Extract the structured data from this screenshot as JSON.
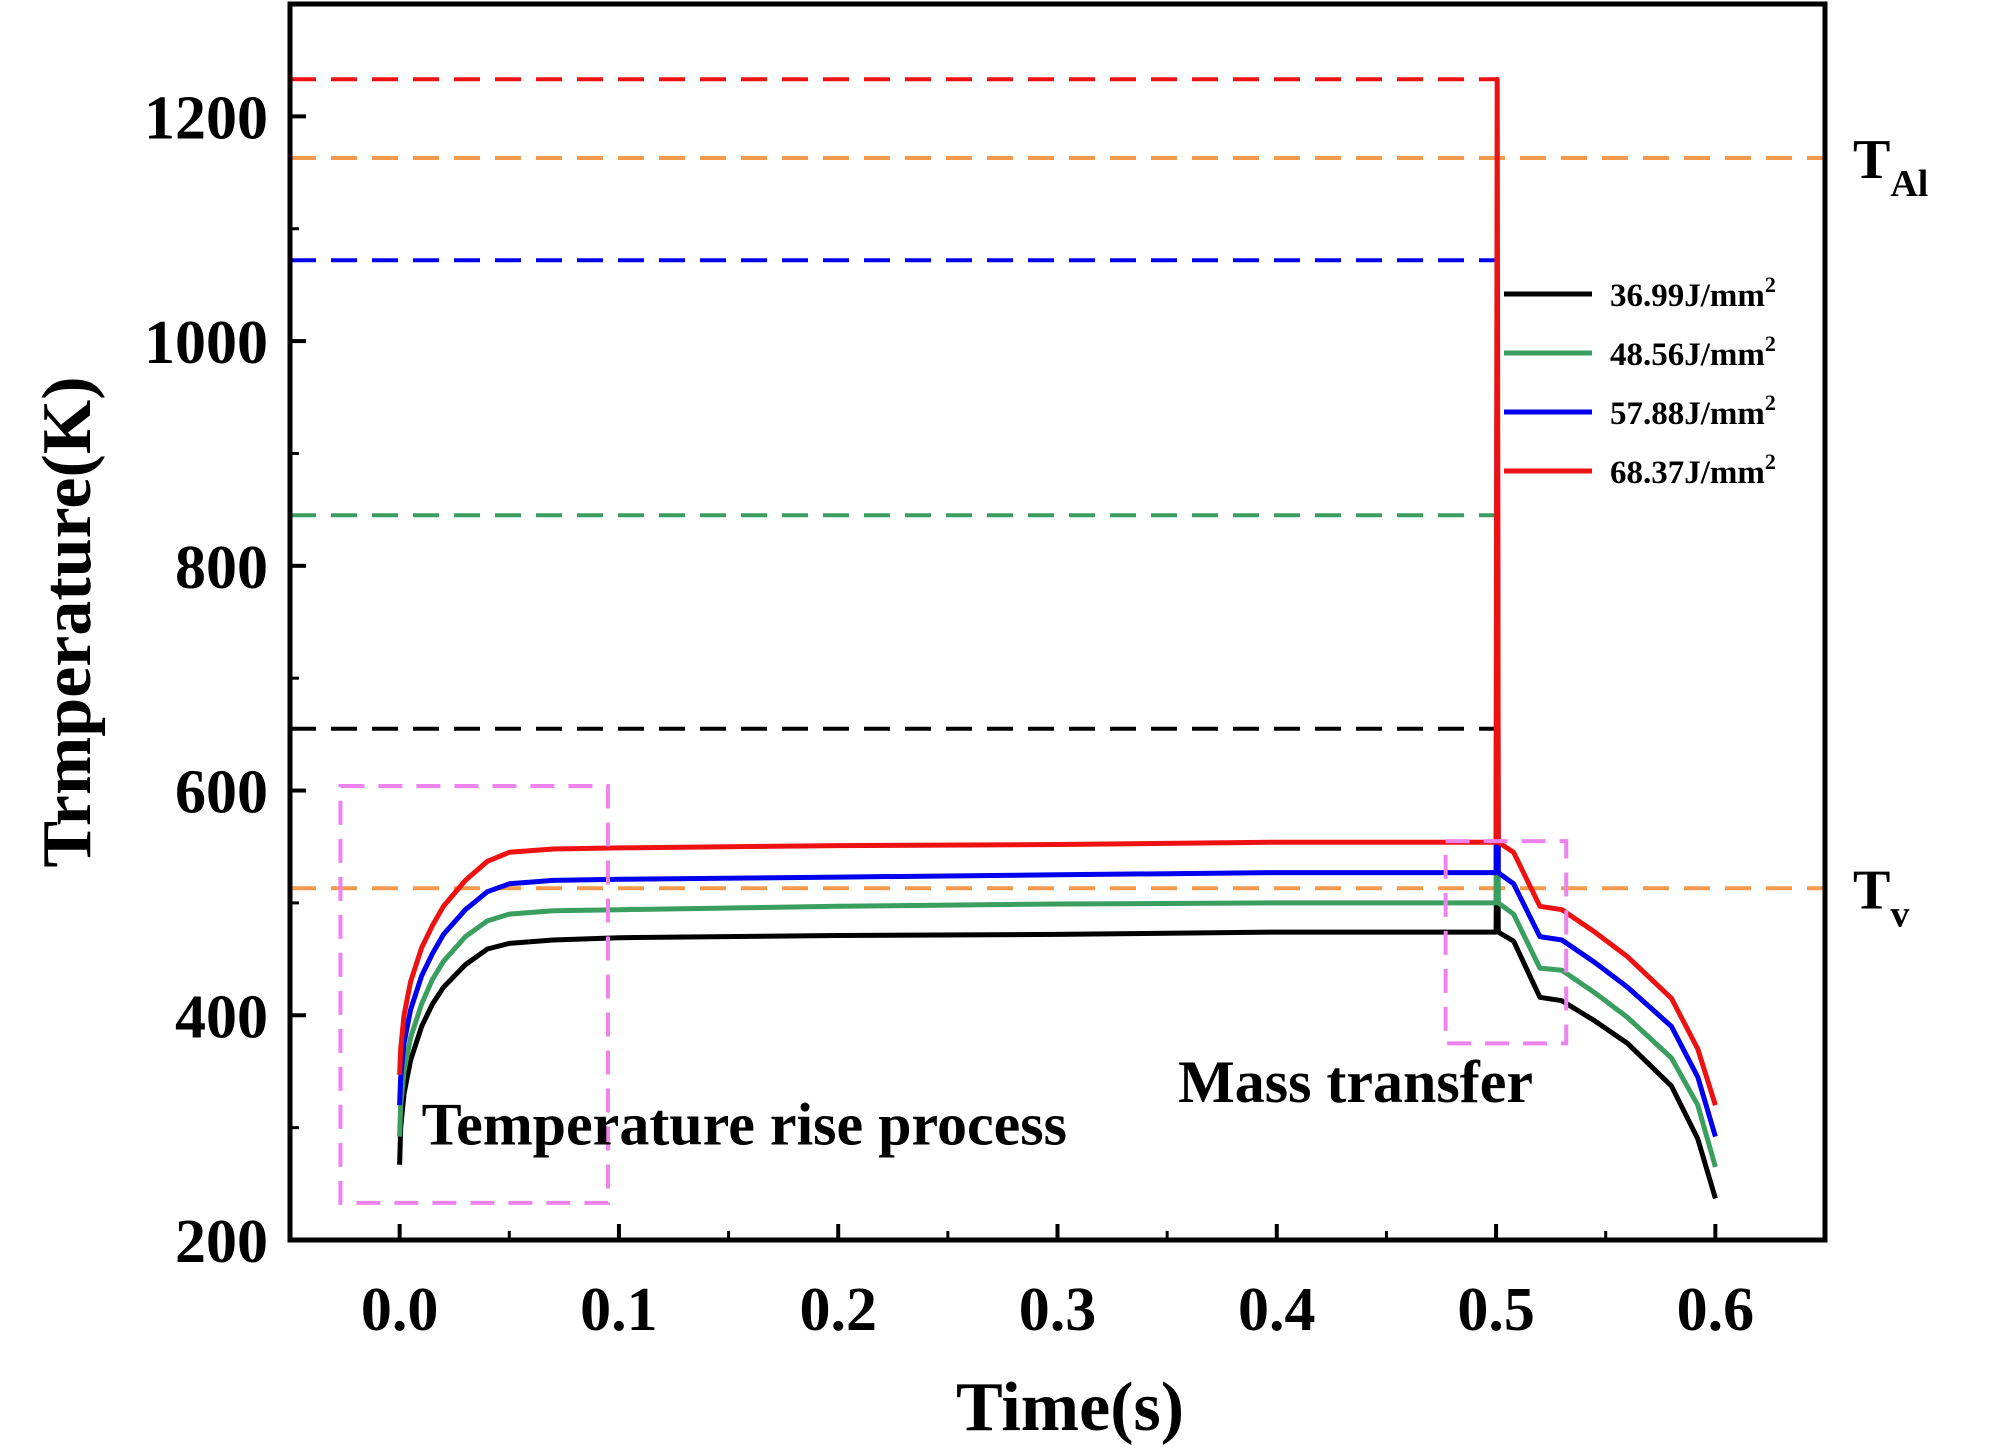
{
  "chart_data": {
    "type": "line",
    "title": "",
    "xlabel": "Time(s)",
    "ylabel": "Trmperature(K)",
    "xlim": [
      -0.05,
      0.65
    ],
    "ylim": [
      200,
      1300
    ],
    "xticks": [
      0.0,
      0.1,
      0.2,
      0.3,
      0.4,
      0.5,
      0.6
    ],
    "xtick_labels": [
      "0.0",
      "0.1",
      "0.2",
      "0.3",
      "0.4",
      "0.5",
      "0.6"
    ],
    "yticks": [
      200,
      400,
      600,
      800,
      1000,
      1200
    ],
    "ytick_labels": [
      "200",
      "400",
      "600",
      "800",
      "1000",
      "1200"
    ],
    "grid": false,
    "legend_position": "right",
    "series": [
      {
        "name": "36.99J/mm",
        "superscript": "2",
        "color": "#000000",
        "peak": 655,
        "points": [
          [
            0.0,
            267
          ],
          [
            0.0005,
            300
          ],
          [
            0.002,
            330
          ],
          [
            0.005,
            360
          ],
          [
            0.01,
            390
          ],
          [
            0.015,
            410
          ],
          [
            0.02,
            425
          ],
          [
            0.03,
            445
          ],
          [
            0.04,
            459
          ],
          [
            0.05,
            464
          ],
          [
            0.07,
            467
          ],
          [
            0.1,
            469
          ],
          [
            0.2,
            471
          ],
          [
            0.3,
            472
          ],
          [
            0.4,
            474
          ],
          [
            0.45,
            474
          ],
          [
            0.499,
            474
          ],
          [
            0.5,
            474
          ],
          [
            0.5005,
            655
          ],
          [
            0.501,
            474
          ],
          [
            0.508,
            466
          ],
          [
            0.52,
            416
          ],
          [
            0.53,
            413
          ],
          [
            0.545,
            395
          ],
          [
            0.56,
            375
          ],
          [
            0.58,
            337
          ],
          [
            0.592,
            290
          ],
          [
            0.6,
            237
          ]
        ]
      },
      {
        "name": "48.56J/mm",
        "superscript": "2",
        "color": "#3a9e5f",
        "peak": 845,
        "points": [
          [
            0.0,
            292
          ],
          [
            0.0005,
            320
          ],
          [
            0.002,
            350
          ],
          [
            0.005,
            380
          ],
          [
            0.01,
            410
          ],
          [
            0.015,
            432
          ],
          [
            0.02,
            448
          ],
          [
            0.03,
            470
          ],
          [
            0.04,
            484
          ],
          [
            0.05,
            490
          ],
          [
            0.07,
            493
          ],
          [
            0.1,
            494
          ],
          [
            0.2,
            497
          ],
          [
            0.3,
            499
          ],
          [
            0.4,
            500
          ],
          [
            0.45,
            500
          ],
          [
            0.499,
            500
          ],
          [
            0.5,
            500
          ],
          [
            0.5005,
            845
          ],
          [
            0.501,
            500
          ],
          [
            0.508,
            490
          ],
          [
            0.52,
            442
          ],
          [
            0.53,
            440
          ],
          [
            0.545,
            420
          ],
          [
            0.56,
            398
          ],
          [
            0.58,
            362
          ],
          [
            0.592,
            320
          ],
          [
            0.6,
            265
          ]
        ]
      },
      {
        "name": "57.88J/mm",
        "superscript": "2",
        "color": "#0000ee",
        "peak": 1072,
        "points": [
          [
            0.0,
            320
          ],
          [
            0.0005,
            345
          ],
          [
            0.002,
            375
          ],
          [
            0.005,
            405
          ],
          [
            0.01,
            435
          ],
          [
            0.015,
            455
          ],
          [
            0.02,
            472
          ],
          [
            0.03,
            494
          ],
          [
            0.04,
            510
          ],
          [
            0.05,
            517
          ],
          [
            0.07,
            520
          ],
          [
            0.1,
            521
          ],
          [
            0.2,
            523
          ],
          [
            0.3,
            525
          ],
          [
            0.4,
            527
          ],
          [
            0.45,
            527
          ],
          [
            0.499,
            527
          ],
          [
            0.5,
            527
          ],
          [
            0.5005,
            1072
          ],
          [
            0.501,
            527
          ],
          [
            0.508,
            517
          ],
          [
            0.52,
            470
          ],
          [
            0.53,
            467
          ],
          [
            0.545,
            447
          ],
          [
            0.56,
            425
          ],
          [
            0.58,
            390
          ],
          [
            0.592,
            345
          ],
          [
            0.6,
            292
          ]
        ]
      },
      {
        "name": "68.37J/mm",
        "superscript": "2",
        "color": "#ee1111",
        "peak": 1233,
        "points": [
          [
            0.0,
            347
          ],
          [
            0.0005,
            370
          ],
          [
            0.002,
            400
          ],
          [
            0.005,
            430
          ],
          [
            0.01,
            460
          ],
          [
            0.015,
            480
          ],
          [
            0.02,
            497
          ],
          [
            0.03,
            520
          ],
          [
            0.04,
            537
          ],
          [
            0.05,
            545
          ],
          [
            0.07,
            548
          ],
          [
            0.1,
            549
          ],
          [
            0.2,
            551
          ],
          [
            0.3,
            552
          ],
          [
            0.4,
            554
          ],
          [
            0.45,
            554
          ],
          [
            0.499,
            554
          ],
          [
            0.5,
            554
          ],
          [
            0.5005,
            1233
          ],
          [
            0.501,
            554
          ],
          [
            0.508,
            545
          ],
          [
            0.52,
            497
          ],
          [
            0.53,
            494
          ],
          [
            0.545,
            474
          ],
          [
            0.56,
            452
          ],
          [
            0.58,
            415
          ],
          [
            0.592,
            370
          ],
          [
            0.6,
            320
          ]
        ]
      }
    ],
    "peak_lines": [
      {
        "y": 1233,
        "color": "#ee1111"
      },
      {
        "y": 1072,
        "color": "#0000ee"
      },
      {
        "y": 845,
        "color": "#3a9e5f"
      },
      {
        "y": 655,
        "color": "#000000"
      }
    ],
    "reference_lines": [
      {
        "y": 1163,
        "color": "#f39a4c",
        "label_main": "T",
        "label_sub": "Al"
      },
      {
        "y": 513,
        "color": "#f39a4c",
        "label_main": "T",
        "label_sub": "v"
      }
    ],
    "annotations": [
      {
        "text": "Temperature rise process",
        "x": 0.01,
        "y": 285
      },
      {
        "text": "Mass transfer",
        "x": 0.355,
        "y": 323
      }
    ],
    "highlight_boxes": [
      {
        "x0": -0.027,
        "x1": 0.095,
        "y0": 233,
        "y1": 604,
        "color": "#ee82ee"
      },
      {
        "x0": 0.477,
        "x1": 0.532,
        "y0": 375,
        "y1": 555,
        "color": "#ee82ee"
      }
    ]
  }
}
